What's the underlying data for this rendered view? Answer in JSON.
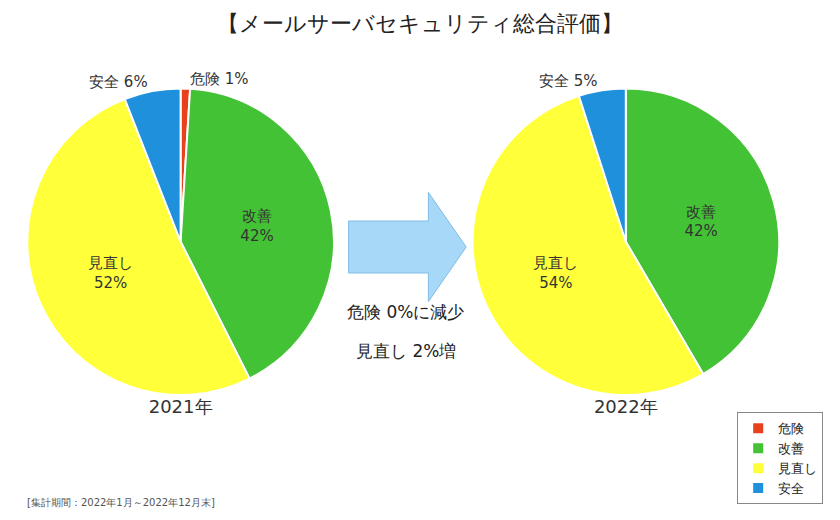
{
  "title": "【メールサーバセキュリティ総合評価】",
  "annotations": [
    "危険 0%に減少",
    "見直し 2%増"
  ],
  "footnote": "[集計期間：2022年1月～2022年12月末]",
  "legend": "lower right",
  "chart_data": [
    {
      "type": "pie",
      "title": "2021年",
      "categories": [
        "危険",
        "改善",
        "見直し",
        "安全"
      ],
      "values": [
        1,
        42,
        52,
        6
      ],
      "value_labels": [
        "1%",
        "42%",
        "52%",
        "6%"
      ],
      "colors": [
        "#e8401c",
        "#44c236",
        "#ffff3a",
        "#1e90dc"
      ],
      "data_labels": true
    },
    {
      "type": "pie",
      "title": "2022年",
      "categories": [
        "危険",
        "改善",
        "見直し",
        "安全"
      ],
      "values": [
        0,
        42,
        54,
        5
      ],
      "value_labels": [
        null,
        "42%",
        "54%",
        "5%"
      ],
      "colors": [
        "#e8401c",
        "#44c236",
        "#ffff3a",
        "#1e90dc"
      ],
      "data_labels": true
    }
  ]
}
